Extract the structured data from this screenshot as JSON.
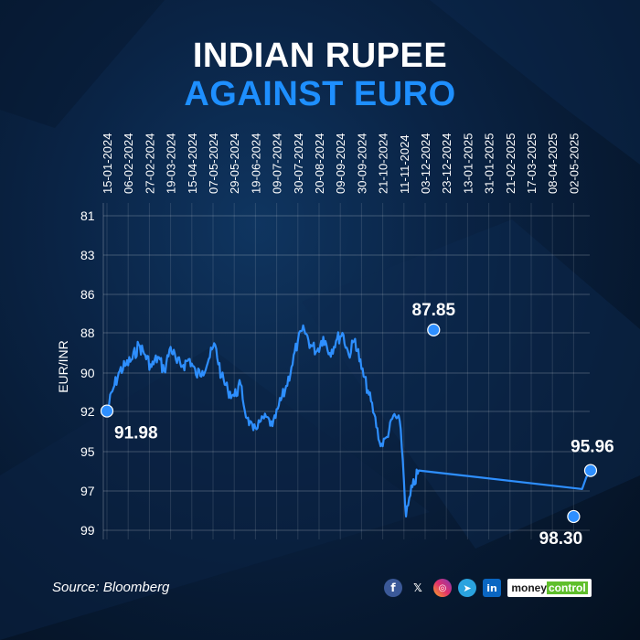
{
  "header": {
    "title_line1": "INDIAN RUPEE",
    "title_line2": "AGAINST EURO"
  },
  "footer": {
    "source": "Source: Bloomberg",
    "brand_prefix": "money",
    "brand_suffix": "control",
    "social_icons": [
      "facebook-icon",
      "x-icon",
      "instagram-icon",
      "telegram-icon",
      "linkedin-icon"
    ]
  },
  "colors": {
    "line": "#2e8fff",
    "title_accent": "#1e8fff",
    "text": "#ffffff"
  },
  "chart_data": {
    "type": "line",
    "ylabel": "EUR/INR",
    "y_inverted": true,
    "ylim": [
      81,
      99
    ],
    "y_ticks": [
      81,
      83,
      86,
      88,
      90,
      92,
      95,
      97,
      99
    ],
    "x_ticks": [
      "15-01-2024",
      "06-02-2024",
      "27-02-2024",
      "19-03-2024",
      "15-04-2024",
      "07-05-2024",
      "29-05-2024",
      "19-06-2024",
      "09-07-2024",
      "30-07-2024",
      "20-08-2024",
      "09-09-2024",
      "30-09-2024",
      "21-10-2024",
      "11-11-2024",
      "03-12-2024",
      "23-12-2024",
      "13-01-2025",
      "31-01-2025",
      "21-02-2025",
      "17-03-2025",
      "08-04-2025",
      "02-05-2025"
    ],
    "grid": true,
    "series": [
      {
        "x": [
          0.0,
          0.3,
          0.6,
          0.9,
          1.2,
          1.5,
          1.8,
          2.1,
          2.4,
          2.7,
          3.0,
          3.3,
          3.6,
          3.9,
          4.2,
          4.5,
          4.8,
          5.1,
          5.4,
          5.7,
          6.0,
          6.3,
          6.6,
          6.9,
          7.2,
          7.5,
          7.8,
          8.1,
          8.4,
          8.7,
          9.0,
          9.3,
          9.6,
          9.9,
          10.2,
          10.5,
          10.8,
          11.1,
          11.4,
          11.7,
          12.0,
          12.3,
          12.6,
          12.9,
          13.2,
          13.5,
          13.8,
          14.1,
          14.4,
          14.7,
          15.0,
          15.3,
          15.6,
          15.9,
          16.2,
          16.5,
          16.8,
          17.1,
          17.4,
          17.7,
          18.0,
          18.3,
          18.6,
          18.9,
          19.2,
          19.5,
          19.8,
          20.1,
          20.4,
          20.7,
          21.0,
          21.3,
          21.6,
          21.9,
          22.2
        ],
        "values": [
          91.98,
          90.8,
          89.9,
          89.6,
          89.3,
          88.6,
          89.1,
          89.7,
          89.2,
          89.9,
          88.7,
          89.5,
          89.6,
          89.3,
          90.1,
          89.9,
          89.3,
          88.6,
          90.2,
          90.9,
          91.2,
          90.6,
          92.5,
          93.4,
          92.8,
          92.4,
          93.1,
          91.7,
          90.9,
          89.7,
          88.4,
          87.85,
          88.6,
          88.9,
          88.2,
          89.0,
          88.4,
          88.0,
          89.1,
          88.3,
          89.8,
          90.9,
          92.2,
          94.6,
          93.9,
          92.3,
          92.7,
          98.3,
          96.8,
          95.96,
          95.96,
          95.96,
          95.96,
          95.96,
          95.96,
          95.96,
          95.96,
          95.96,
          95.96,
          95.96,
          95.96,
          95.96,
          95.96,
          95.96,
          95.96,
          95.96,
          95.96,
          95.96,
          95.96,
          95.96,
          95.96,
          95.96,
          95.96,
          95.96,
          95.96
        ]
      }
    ],
    "annotations": [
      {
        "label": "91.98",
        "x": 0.0,
        "value": 91.98
      },
      {
        "label": "87.85",
        "x": 15.4,
        "value": 87.85
      },
      {
        "label": "98.30",
        "x": 22.0,
        "value": 98.3
      },
      {
        "label": "95.96",
        "x": 22.8,
        "value": 95.96
      }
    ]
  }
}
